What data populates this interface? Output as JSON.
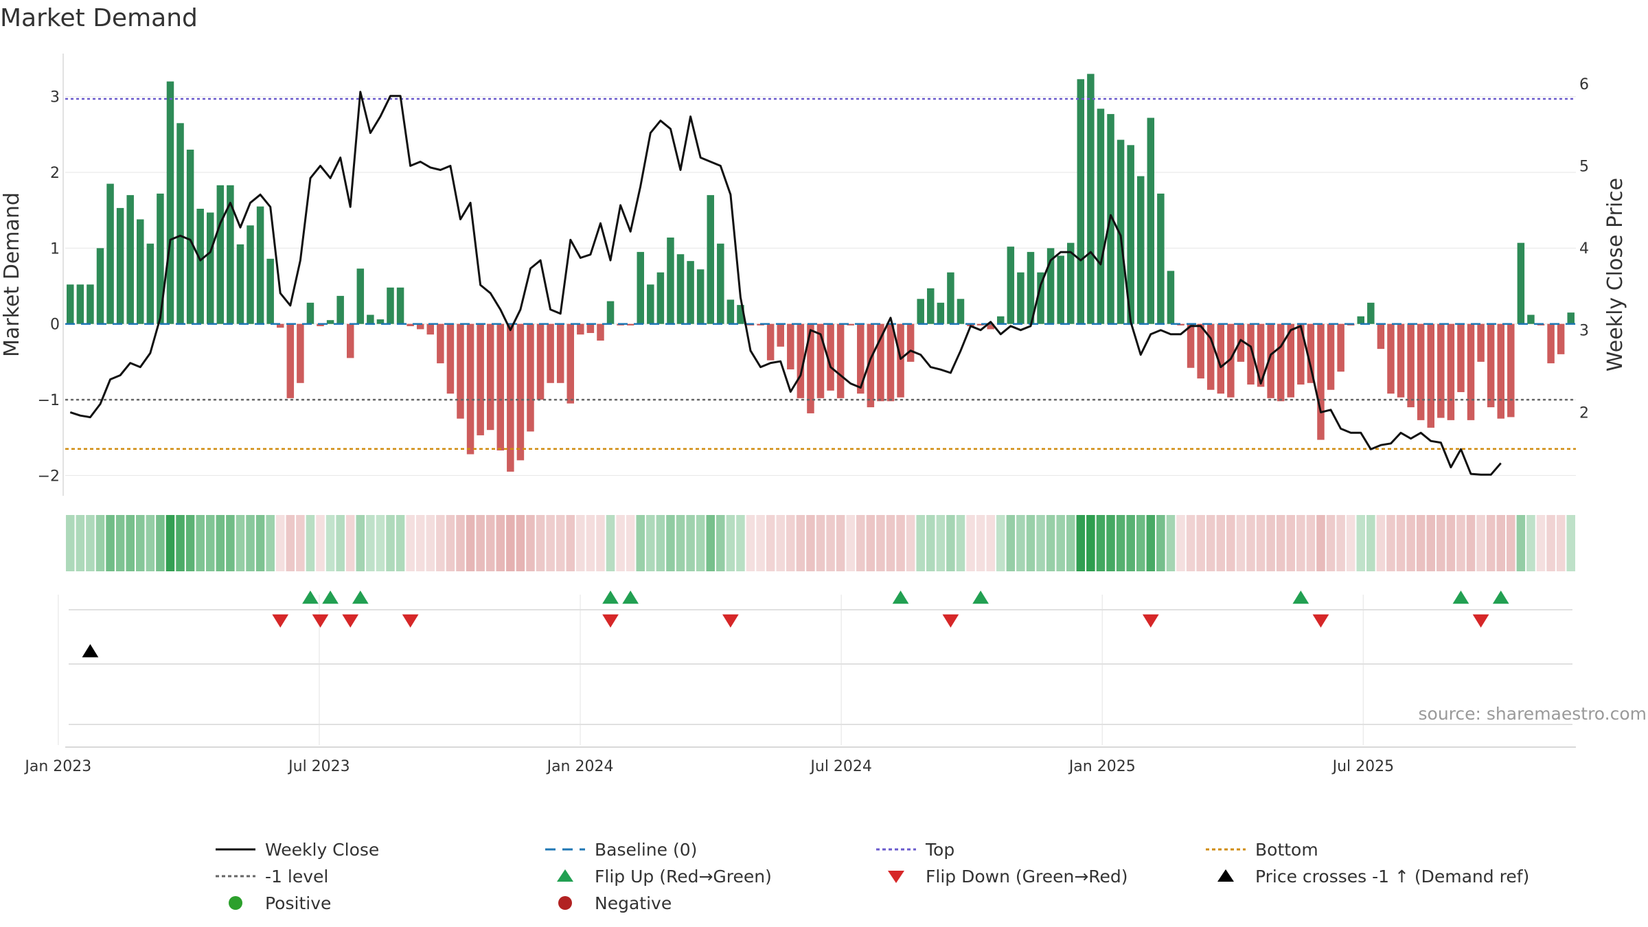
{
  "chart_data": {
    "type": "bar",
    "title": "Market Demand",
    "ylabel_left": "Market Demand",
    "ylabel_right": "Weekly Close Price",
    "source": "source: sharemaestro.com",
    "y_left_ticks": [
      "3",
      "2",
      "1",
      "0",
      "−1",
      "−2"
    ],
    "y_right_ticks": [
      "6",
      "5",
      "4",
      "3",
      "2"
    ],
    "x_ticks": [
      "Jan 2023",
      "Jul 2023",
      "Jan 2024",
      "Jul 2024",
      "Jan 2025",
      "Jul 2025"
    ],
    "y_left_range": [
      -2.25,
      3.55
    ],
    "y_right_range": [
      1.0,
      6.35
    ],
    "reference_lines": {
      "baseline": 0,
      "top": 2.97,
      "bottom": -1.65,
      "minus_one": -1
    },
    "demand_values": [
      0.52,
      0.52,
      0.52,
      1.0,
      1.85,
      1.53,
      1.7,
      1.38,
      1.06,
      1.72,
      3.2,
      2.65,
      2.3,
      1.52,
      1.47,
      1.83,
      1.83,
      1.05,
      1.3,
      1.55,
      0.86,
      -0.05,
      -0.98,
      -0.78,
      0.28,
      -0.03,
      0.05,
      0.37,
      -0.45,
      0.73,
      0.12,
      0.06,
      0.48,
      0.48,
      -0.03,
      -0.07,
      -0.14,
      -0.52,
      -0.92,
      -1.25,
      -1.72,
      -1.47,
      -1.4,
      -1.67,
      -1.95,
      -1.8,
      -1.42,
      -1.0,
      -0.78,
      -0.78,
      -1.05,
      -0.14,
      -0.12,
      -0.22,
      0.3,
      -0.02,
      -0.02,
      0.95,
      0.52,
      0.68,
      1.14,
      0.92,
      0.83,
      0.72,
      1.7,
      1.06,
      0.32,
      0.25,
      -0.02,
      -0.02,
      -0.48,
      -0.3,
      -0.6,
      -0.98,
      -1.18,
      -0.98,
      -0.88,
      -0.98,
      -0.02,
      -0.92,
      -1.1,
      -1.02,
      -1.02,
      -0.97,
      -0.5,
      0.33,
      0.47,
      0.28,
      0.68,
      0.33,
      -0.03,
      -0.02,
      -0.07,
      0.1,
      1.02,
      0.68,
      0.95,
      0.68,
      1.0,
      0.9,
      1.07,
      3.23,
      3.3,
      2.84,
      2.77,
      2.43,
      2.36,
      1.95,
      2.72,
      1.72,
      0.7,
      -0.02,
      -0.58,
      -0.72,
      -0.87,
      -0.92,
      -0.97,
      -0.5,
      -0.8,
      -0.83,
      -0.98,
      -1.02,
      -0.97,
      -0.8,
      -0.78,
      -1.53,
      -0.87,
      -0.63,
      -0.02,
      0.1,
      0.28,
      -0.33,
      -0.92,
      -0.97,
      -1.1,
      -1.27,
      -1.37,
      -1.24,
      -1.27,
      -0.9,
      -1.27,
      -0.5,
      -1.1,
      -1.25,
      -1.23,
      1.07,
      0.12,
      -0.02,
      -0.52,
      -0.4,
      0.15
    ],
    "price_values": [
      2.0,
      1.96,
      1.94,
      2.1,
      2.4,
      2.45,
      2.6,
      2.55,
      2.72,
      3.15,
      4.1,
      4.15,
      4.1,
      3.85,
      3.95,
      4.3,
      4.55,
      4.25,
      4.55,
      4.65,
      4.5,
      3.45,
      3.3,
      3.85,
      4.85,
      5.0,
      4.85,
      5.1,
      4.5,
      5.9,
      5.4,
      5.6,
      5.85,
      5.85,
      5.0,
      5.05,
      4.98,
      4.95,
      5.0,
      4.35,
      4.55,
      3.55,
      3.45,
      3.25,
      3.0,
      3.25,
      3.75,
      3.85,
      3.25,
      3.2,
      4.1,
      3.88,
      3.92,
      4.3,
      3.85,
      4.52,
      4.2,
      4.75,
      5.4,
      5.55,
      5.45,
      4.95,
      5.6,
      5.1,
      5.05,
      5.0,
      4.65,
      3.4,
      2.75,
      2.55,
      2.6,
      2.62,
      2.25,
      2.45,
      3.0,
      2.95,
      2.55,
      2.45,
      2.35,
      2.3,
      2.65,
      2.9,
      3.15,
      2.65,
      2.75,
      2.7,
      2.55,
      2.52,
      2.48,
      2.75,
      3.05,
      3.0,
      3.1,
      2.95,
      3.05,
      3.0,
      3.05,
      3.55,
      3.85,
      3.95,
      3.95,
      3.85,
      3.95,
      3.8,
      4.4,
      4.15,
      3.1,
      2.7,
      2.95,
      3.0,
      2.95,
      2.95,
      3.05,
      3.05,
      2.9,
      2.55,
      2.65,
      2.88,
      2.8,
      2.35,
      2.7,
      2.8,
      3.0,
      3.05,
      2.55,
      2.0,
      2.03,
      1.8,
      1.75,
      1.75,
      1.55,
      1.6,
      1.62,
      1.75,
      1.68,
      1.75,
      1.65,
      1.63,
      1.33,
      1.55,
      1.25,
      1.24,
      1.24,
      1.38
    ],
    "flip_up_weeks": [
      24,
      26,
      29,
      54,
      56,
      83,
      91,
      123,
      139,
      143
    ],
    "flip_down_weeks": [
      21,
      25,
      28,
      34,
      54,
      66,
      88,
      108,
      125,
      141
    ],
    "price_cross_weeks": [
      2
    ]
  },
  "legend": [
    {
      "label": "Weekly Close",
      "marker": "solid-line",
      "color": "#111111"
    },
    {
      "label": "Baseline (0)",
      "marker": "dashed-line",
      "color": "#1f77b4"
    },
    {
      "label": "Top",
      "marker": "dotted-line",
      "color": "#6a5acd"
    },
    {
      "label": "Bottom",
      "marker": "dotted-line",
      "color": "#d08c10"
    },
    {
      "label": "-1 level",
      "marker": "dotted-line",
      "color": "#666666"
    },
    {
      "label": "Flip Up (Red→Green)",
      "marker": "triangle-up",
      "color": "#22a052"
    },
    {
      "label": "Flip Down (Green→Red)",
      "marker": "triangle-down",
      "color": "#d62728"
    },
    {
      "label": "Price crosses -1 ↑ (Demand ref)",
      "marker": "triangle-up",
      "color": "#000000"
    },
    {
      "label": "Positive",
      "marker": "circle",
      "color": "#2ca02c"
    },
    {
      "label": "Negative",
      "marker": "circle",
      "color": "#b22222"
    }
  ],
  "colors": {
    "positive_bar": "#2e8b57",
    "negative_bar": "#cd5c5c",
    "price_line": "#111111",
    "baseline": "#1f77b4",
    "top": "#6a5acd",
    "bottom": "#d08c10",
    "minus_one": "#666666",
    "flip_up": "#22a052",
    "flip_down": "#d62728",
    "cross": "#000000",
    "grid": "#e6e6e6"
  }
}
